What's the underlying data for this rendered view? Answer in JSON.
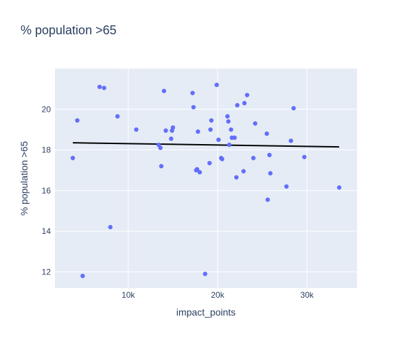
{
  "chart_data": {
    "type": "scatter",
    "title": "% population >65",
    "xlabel": "impact_points",
    "ylabel": "% population >65",
    "xlim": [
      1800,
      35600
    ],
    "ylim": [
      11.2,
      22.0
    ],
    "x_ticks": [
      10000,
      20000,
      30000
    ],
    "x_tick_labels": [
      "10k",
      "20k",
      "30k"
    ],
    "y_ticks": [
      12,
      14,
      16,
      18,
      20
    ],
    "y_tick_labels": [
      "12",
      "14",
      "16",
      "18",
      "20"
    ],
    "grid": true,
    "plot_background": "#E5ECF6",
    "marker_color": "#636EFA",
    "trendline_color": "#000000",
    "series": [
      {
        "x": [
          3800,
          4300,
          4900,
          6800,
          7300,
          8000,
          8800,
          10900,
          13400,
          13600,
          13700,
          14000,
          14200,
          14800,
          14900,
          15000,
          17200,
          17300,
          17600,
          17700,
          17800,
          18000,
          18600,
          19100,
          19200,
          19300,
          19900,
          20100,
          20400,
          20500,
          21100,
          21200,
          21300,
          21500,
          21600,
          21900,
          22100,
          22200,
          22900,
          23000,
          23300,
          24000,
          24200,
          25500,
          25600,
          25800,
          25900,
          27700,
          28200,
          28500,
          29700,
          33600
        ],
        "y": [
          17.6,
          19.45,
          11.8,
          21.1,
          21.05,
          14.2,
          19.65,
          19.0,
          18.25,
          18.1,
          17.2,
          20.9,
          18.95,
          18.55,
          18.95,
          19.1,
          20.8,
          20.1,
          17.0,
          17.05,
          18.9,
          16.9,
          11.9,
          17.35,
          19.0,
          19.45,
          21.2,
          18.5,
          17.6,
          17.55,
          19.65,
          19.4,
          18.25,
          19.0,
          18.6,
          18.6,
          16.65,
          20.2,
          16.95,
          20.3,
          20.7,
          17.6,
          19.3,
          18.8,
          15.55,
          17.75,
          16.85,
          16.2,
          18.45,
          20.05,
          17.65,
          16.15
        ]
      }
    ],
    "trendline": {
      "x": [
        3800,
        33600
      ],
      "y": [
        18.35,
        18.15
      ]
    }
  }
}
